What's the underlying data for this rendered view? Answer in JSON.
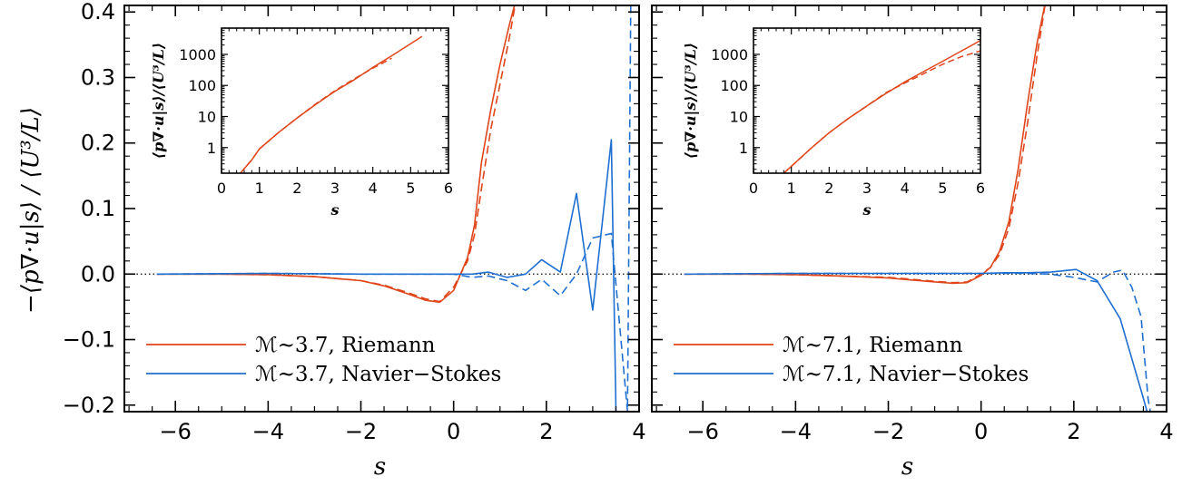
{
  "ylabel": "−⟨p∇·u|s⟩ / ⟨U³/L⟩",
  "colors": {
    "riemann": "#e0451a",
    "navier_stokes": "#1f6fd0",
    "axis": "#000000",
    "zero_line": "#000000"
  },
  "chart_data": [
    {
      "type": "line",
      "xlabel": "s",
      "xlim": [
        -7.1,
        4.0
      ],
      "ylim": [
        -0.21,
        0.41
      ],
      "xticks": [
        -6,
        -4,
        -2,
        0,
        2,
        4
      ],
      "xtick_labels": [
        "−6",
        "−4",
        "−2",
        "0",
        "2",
        "4"
      ],
      "yticks": [
        -0.2,
        -0.1,
        0.0,
        0.1,
        0.2,
        0.3,
        0.4
      ],
      "ytick_labels": [
        "−0.2",
        "−0.1",
        "0.0",
        "0.1",
        "0.2",
        "0.3",
        "0.4"
      ],
      "zero_line": true,
      "legend": {
        "position": "bottom-left",
        "entries": [
          {
            "label": "ℳ~3.7, Riemann",
            "color_key": "riemann"
          },
          {
            "label": "ℳ~3.7, Navier−Stokes",
            "color_key": "navier_stokes"
          }
        ]
      },
      "series": [
        {
          "name": "ℳ~3.7, Riemann",
          "color_key": "riemann",
          "dash": false,
          "x": [
            -6.4,
            -5.0,
            -4.0,
            -3.0,
            -2.0,
            -1.5,
            -1.0,
            -0.6,
            -0.3,
            0.0,
            0.15,
            0.3,
            0.45,
            0.6,
            0.8,
            1.0,
            1.2,
            1.35
          ],
          "y": [
            0.0,
            0.0,
            -0.001,
            -0.004,
            -0.01,
            -0.018,
            -0.03,
            -0.04,
            -0.043,
            -0.025,
            0.0,
            0.025,
            0.075,
            0.17,
            0.25,
            0.32,
            0.38,
            0.42
          ]
        },
        {
          "name": "ℳ~3.7, Riemann (dashed)",
          "color_key": "riemann",
          "dash": true,
          "x": [
            -6.4,
            -5.0,
            -4.0,
            -3.0,
            -2.0,
            -1.5,
            -1.0,
            -0.6,
            -0.3,
            0.0,
            0.15,
            0.3,
            0.45,
            0.6,
            0.8,
            1.0,
            1.2,
            1.35
          ],
          "y": [
            0.0,
            0.0,
            -0.001,
            -0.004,
            -0.01,
            -0.017,
            -0.028,
            -0.038,
            -0.042,
            -0.02,
            0.0,
            0.02,
            0.06,
            0.13,
            0.22,
            0.29,
            0.36,
            0.42
          ]
        },
        {
          "name": "ℳ~3.7, Navier−Stokes",
          "color_key": "navier_stokes",
          "dash": false,
          "x": [
            -6.4,
            -4.0,
            -2.0,
            0.0,
            0.4,
            0.75,
            1.15,
            1.55,
            1.9,
            2.3,
            2.65,
            3.0,
            3.4,
            3.5
          ],
          "y": [
            0.0,
            0.001,
            0.0,
            0.0,
            0.0,
            0.003,
            -0.005,
            0.0,
            0.022,
            0.003,
            0.123,
            -0.055,
            0.205,
            -0.21
          ]
        },
        {
          "name": "ℳ~3.7, Navier−Stokes (dashed)",
          "color_key": "navier_stokes",
          "dash": true,
          "x": [
            -6.4,
            -4.0,
            -2.0,
            0.0,
            0.4,
            0.75,
            1.15,
            1.55,
            1.9,
            2.3,
            2.65,
            3.0,
            3.4,
            3.75,
            3.82,
            3.88
          ],
          "y": [
            0.0,
            0.001,
            0.0,
            0.0,
            -0.005,
            -0.003,
            -0.01,
            -0.025,
            -0.008,
            -0.033,
            0.0,
            0.055,
            0.062,
            -0.21,
            0.41,
            0.41
          ]
        }
      ],
      "inset": {
        "xlabel": "s",
        "ylabel": "⟨p∇·u|s⟩/⟨U³/L⟩",
        "xlim": [
          0,
          6
        ],
        "yscale": "log",
        "ylim": [
          0.15,
          7000
        ],
        "xticks": [
          0,
          1,
          2,
          3,
          4,
          5,
          6
        ],
        "xtick_labels": [
          "0",
          "1",
          "2",
          "3",
          "4",
          "5",
          "6"
        ],
        "yticks": [
          1,
          10,
          100,
          1000
        ],
        "ytick_labels": [
          "1",
          "10",
          "100",
          "1000"
        ],
        "series": [
          {
            "color_key": "riemann",
            "dash": false,
            "x": [
              0.5,
              0.8,
              1.0,
              1.5,
              2.0,
              2.5,
              3.0,
              3.5,
              4.0,
              4.5,
              5.0,
              5.3
            ],
            "y": [
              0.15,
              0.4,
              0.9,
              3.0,
              9.0,
              25,
              65,
              150,
              380,
              900,
              2200,
              3800
            ]
          },
          {
            "color_key": "riemann",
            "dash": true,
            "x": [
              0.5,
              0.8,
              1.0,
              1.5,
              2.0,
              2.5,
              3.0,
              3.5,
              4.0,
              4.5
            ],
            "y": [
              0.15,
              0.4,
              0.9,
              3.0,
              9.0,
              26,
              68,
              160,
              360,
              750
            ]
          }
        ]
      }
    },
    {
      "type": "line",
      "xlabel": "s",
      "xlim": [
        -7.1,
        4.0
      ],
      "ylim": [
        -0.21,
        0.41
      ],
      "xticks": [
        -6,
        -4,
        -2,
        0,
        2,
        4
      ],
      "xtick_labels": [
        "−6",
        "−4",
        "−2",
        "0",
        "2",
        "4"
      ],
      "yticks": [
        -0.2,
        -0.1,
        0.0,
        0.1,
        0.2,
        0.3,
        0.4
      ],
      "zero_line": true,
      "legend": {
        "position": "bottom-left",
        "entries": [
          {
            "label": "ℳ~7.1, Riemann",
            "color_key": "riemann"
          },
          {
            "label": "ℳ~7.1, Navier−Stokes",
            "color_key": "navier_stokes"
          }
        ]
      },
      "series": [
        {
          "name": "ℳ~7.1, Riemann",
          "color_key": "riemann",
          "dash": false,
          "x": [
            -6.4,
            -5.0,
            -4.0,
            -3.0,
            -2.0,
            -1.5,
            -1.0,
            -0.6,
            -0.3,
            0.0,
            0.2,
            0.4,
            0.6,
            0.8,
            1.0,
            1.2,
            1.4
          ],
          "y": [
            0.0,
            0.0,
            -0.001,
            -0.003,
            -0.006,
            -0.009,
            -0.012,
            -0.014,
            -0.013,
            -0.002,
            0.01,
            0.035,
            0.08,
            0.16,
            0.26,
            0.35,
            0.42
          ]
        },
        {
          "name": "ℳ~7.1, Riemann (dashed)",
          "color_key": "riemann",
          "dash": true,
          "x": [
            -6.4,
            -5.0,
            -4.0,
            -3.0,
            -2.0,
            -1.5,
            -1.0,
            -0.6,
            -0.3,
            0.0,
            0.2,
            0.4,
            0.6,
            0.8,
            1.0,
            1.2,
            1.4
          ],
          "y": [
            0.0,
            0.0,
            -0.001,
            -0.003,
            -0.005,
            -0.008,
            -0.011,
            -0.013,
            -0.012,
            0.0,
            0.01,
            0.03,
            0.07,
            0.14,
            0.23,
            0.33,
            0.42
          ]
        },
        {
          "name": "ℳ~7.1, Navier−Stokes",
          "color_key": "navier_stokes",
          "dash": false,
          "x": [
            -6.4,
            -4.0,
            -2.0,
            0.0,
            0.5,
            1.0,
            1.5,
            2.05,
            2.5,
            3.0,
            3.5,
            3.58
          ],
          "y": [
            0.0,
            0.001,
            0.001,
            0.001,
            0.002,
            0.002,
            0.003,
            0.007,
            -0.01,
            -0.068,
            -0.19,
            -0.21
          ]
        },
        {
          "name": "ℳ~7.1, Navier−Stokes (dashed)",
          "color_key": "navier_stokes",
          "dash": true,
          "x": [
            -6.4,
            -4.0,
            -2.0,
            0.0,
            0.5,
            1.0,
            1.5,
            2.0,
            2.5,
            2.85,
            3.05,
            3.25,
            3.45,
            3.6,
            3.65
          ],
          "y": [
            0.0,
            0.001,
            0.001,
            0.001,
            0.001,
            0.001,
            0.0,
            -0.005,
            -0.012,
            0.003,
            0.006,
            -0.02,
            -0.065,
            -0.19,
            -0.21
          ]
        }
      ],
      "inset": {
        "xlabel": "s",
        "ylabel": "⟨p∇·u|s⟩/⟨U³/L⟩",
        "xlim": [
          0,
          6
        ],
        "yscale": "log",
        "ylim": [
          0.15,
          7000
        ],
        "xticks": [
          0,
          1,
          2,
          3,
          4,
          5,
          6
        ],
        "xtick_labels": [
          "0",
          "1",
          "2",
          "3",
          "4",
          "5",
          "6"
        ],
        "yticks": [
          1,
          10,
          100,
          1000
        ],
        "ytick_labels": [
          "1",
          "10",
          "100",
          "1000"
        ],
        "series": [
          {
            "color_key": "riemann",
            "dash": false,
            "x": [
              0.8,
              1.0,
              1.5,
              2.0,
              2.5,
              3.0,
              3.5,
              4.0,
              4.5,
              5.0,
              5.5,
              6.0
            ],
            "y": [
              0.15,
              0.25,
              0.9,
              3.0,
              8.5,
              22,
              55,
              130,
              280,
              600,
              1300,
              2800
            ]
          },
          {
            "color_key": "riemann",
            "dash": true,
            "x": [
              0.8,
              1.0,
              1.5,
              2.0,
              2.5,
              3.0,
              3.5,
              4.0,
              4.5,
              5.0,
              5.5,
              6.0
            ],
            "y": [
              0.15,
              0.25,
              0.9,
              3.0,
              8.5,
              22,
              58,
              120,
              240,
              480,
              850,
              1300
            ]
          }
        ]
      }
    }
  ]
}
